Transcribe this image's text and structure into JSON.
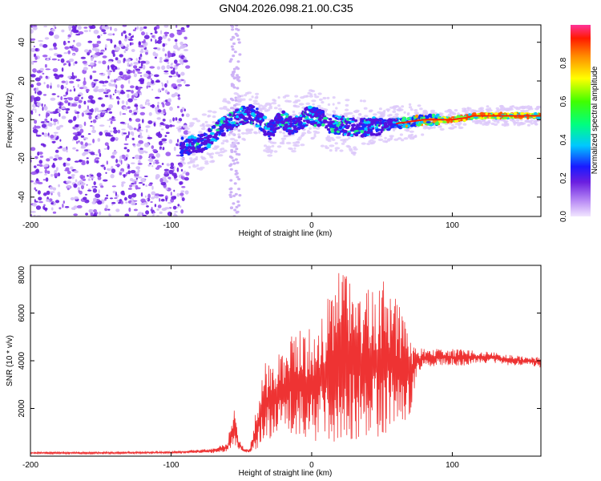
{
  "title": "GN04.2026.098.21.00.C35",
  "chart_data": [
    {
      "type": "heatmap",
      "name": "spectrogram",
      "xlabel": "Height of straight line (km)",
      "ylabel": "Frequency (Hz)",
      "xlim": [
        -200,
        163
      ],
      "ylim": [
        -50,
        49
      ],
      "xticks": [
        -200,
        -100,
        0,
        100
      ],
      "yticks": [
        -40,
        -20,
        0,
        20,
        40
      ],
      "colorbar": {
        "label": "Normalized spectral amplitude",
        "range": [
          0,
          1
        ],
        "ticks": [
          "0.0",
          "0.2",
          "0.4",
          "0.6",
          "0.8"
        ]
      },
      "ridge": {
        "x": [
          -92,
          -85,
          -78,
          -72,
          -66,
          -60,
          -55,
          -50,
          -44,
          -38,
          -30,
          -25,
          -20,
          -15,
          -8,
          -2,
          5,
          12,
          20,
          30,
          40,
          50,
          60,
          70,
          80,
          90,
          100,
          110,
          115,
          130,
          145,
          163
        ],
        "y": [
          -14,
          -13,
          -12,
          -9,
          -5,
          -2,
          0,
          2,
          3,
          1,
          -6,
          -2,
          0,
          -3,
          -1,
          2,
          1,
          -2,
          -3,
          -4,
          -4,
          -3,
          -2,
          -1,
          0,
          0,
          0,
          1,
          2,
          2,
          2,
          2
        ]
      }
    },
    {
      "type": "line",
      "name": "snr",
      "xlabel": "Height of straight line (km)",
      "ylabel": "SNR (10 * v/v)",
      "xlim": [
        -200,
        163
      ],
      "ylim": [
        0,
        8000
      ],
      "xticks": [
        -200,
        -100,
        0,
        100
      ],
      "yticks": [
        2000,
        4000,
        6000,
        8000
      ],
      "series": [
        {
          "name": "SNR",
          "color": "#ee3333",
          "envelope_x": [
            -200,
            -150,
            -100,
            -70,
            -60,
            -55,
            -52,
            -48,
            -44,
            -38,
            -33,
            -28,
            -20,
            -10,
            0,
            10,
            20,
            30,
            40,
            50,
            60,
            70,
            75,
            80,
            90,
            100,
            110,
            120,
            130,
            140,
            150,
            163
          ],
          "envelope_low": [
            90,
            90,
            110,
            130,
            170,
            350,
            280,
            180,
            120,
            300,
            700,
            700,
            800,
            900,
            600,
            300,
            500,
            600,
            700,
            800,
            900,
            1800,
            3400,
            3700,
            3800,
            3800,
            3800,
            3900,
            3900,
            3800,
            3800,
            3700
          ],
          "envelope_high": [
            180,
            180,
            200,
            320,
            600,
            2300,
            800,
            300,
            300,
            2500,
            3900,
            3800,
            4800,
            5300,
            5400,
            6400,
            8000,
            7400,
            7000,
            7400,
            6800,
            5000,
            4600,
            4500,
            4500,
            4500,
            4450,
            4400,
            4350,
            4250,
            4200,
            4150
          ]
        }
      ]
    }
  ]
}
